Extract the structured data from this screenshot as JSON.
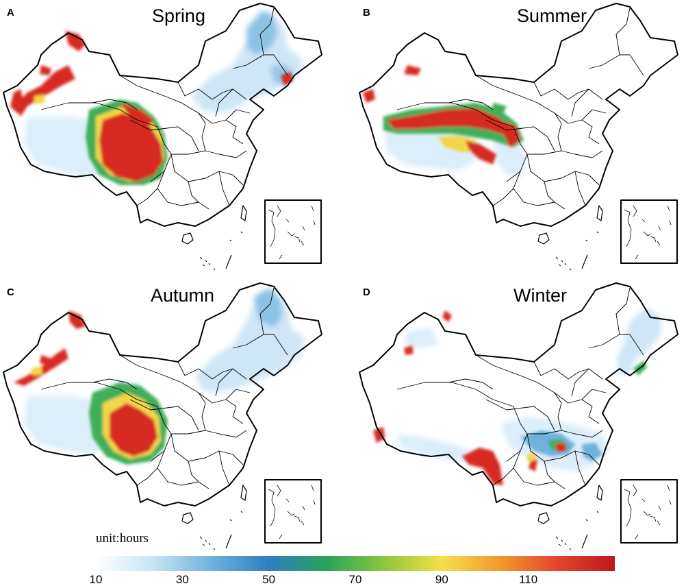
{
  "panels": [
    {
      "letter": "A",
      "title": "Spring"
    },
    {
      "letter": "B",
      "title": "Summer"
    },
    {
      "letter": "C",
      "title": "Autumn"
    },
    {
      "letter": "D",
      "title": "Winter"
    }
  ],
  "unit_label": "unit:hours",
  "colorbar": {
    "min": 10,
    "max": 130,
    "tick_labels": [
      "10",
      "30",
      "50",
      "70",
      "90",
      "110"
    ],
    "tick_values": [
      10,
      30,
      50,
      70,
      90,
      110
    ],
    "colors": [
      "#ffffff",
      "#c6e4f5",
      "#6fb2de",
      "#2f7fc1",
      "#29a35a",
      "#8cc63f",
      "#f5e04a",
      "#f29a2e",
      "#e4452c",
      "#c0171f"
    ]
  },
  "colors": {
    "boundary": "#000000",
    "low": "#dceef9",
    "mid": "#6fb2de",
    "green": "#3fae5a",
    "yellow": "#f2d648",
    "high": "#d62a24"
  }
}
